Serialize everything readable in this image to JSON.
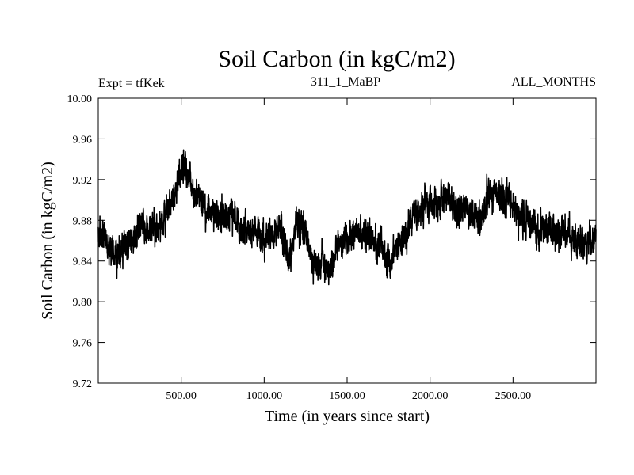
{
  "chart_data": {
    "type": "line",
    "title": "Soil Carbon (in kgC/m2)",
    "subtitle_left": "Expt = tfKek",
    "subtitle_center": "311_1_MaBP",
    "subtitle_right": "ALL_MONTHS",
    "xlabel": "Time (in years since start)",
    "ylabel": "Soil Carbon (in kgC/m2)",
    "xlim": [
      0,
      3000
    ],
    "ylim": [
      9.72,
      10.0
    ],
    "x_ticks": [
      500,
      1000,
      1500,
      2000,
      2500
    ],
    "x_tick_labels": [
      "500.00",
      "1000.00",
      "1500.00",
      "2000.00",
      "2500.00"
    ],
    "y_ticks": [
      9.72,
      9.76,
      9.8,
      9.84,
      9.88,
      9.92,
      9.96,
      10.0
    ],
    "y_tick_labels": [
      "9.72",
      "9.76",
      "9.80",
      "9.84",
      "9.88",
      "9.92",
      "9.96",
      "10.00"
    ],
    "grid": false,
    "series": [
      {
        "color": "#000000",
        "note_envelope": "approximate yearly soil carbon trace; noisy signal around these centre values",
        "x": [
          0,
          50,
          100,
          150,
          200,
          250,
          300,
          350,
          400,
          450,
          500,
          550,
          600,
          650,
          700,
          750,
          800,
          850,
          900,
          950,
          1000,
          1050,
          1100,
          1150,
          1200,
          1250,
          1300,
          1350,
          1400,
          1450,
          1500,
          1550,
          1600,
          1650,
          1700,
          1750,
          1800,
          1850,
          1900,
          1950,
          2000,
          2050,
          2100,
          2150,
          2200,
          2250,
          2300,
          2350,
          2400,
          2450,
          2500,
          2550,
          2600,
          2650,
          2700,
          2750,
          2800,
          2850,
          2900,
          2950,
          3000
        ],
        "values": [
          9.865,
          9.86,
          9.845,
          9.85,
          9.86,
          9.87,
          9.875,
          9.87,
          9.885,
          9.9,
          9.935,
          9.92,
          9.905,
          9.895,
          9.885,
          9.88,
          9.89,
          9.875,
          9.865,
          9.87,
          9.86,
          9.865,
          9.875,
          9.84,
          9.88,
          9.865,
          9.835,
          9.84,
          9.83,
          9.855,
          9.86,
          9.87,
          9.865,
          9.86,
          9.855,
          9.84,
          9.85,
          9.865,
          9.885,
          9.89,
          9.9,
          9.895,
          9.905,
          9.89,
          9.895,
          9.885,
          9.88,
          9.9,
          9.91,
          9.9,
          9.895,
          9.885,
          9.88,
          9.87,
          9.875,
          9.865,
          9.87,
          9.865,
          9.86,
          9.86,
          9.865
        ]
      }
    ]
  }
}
